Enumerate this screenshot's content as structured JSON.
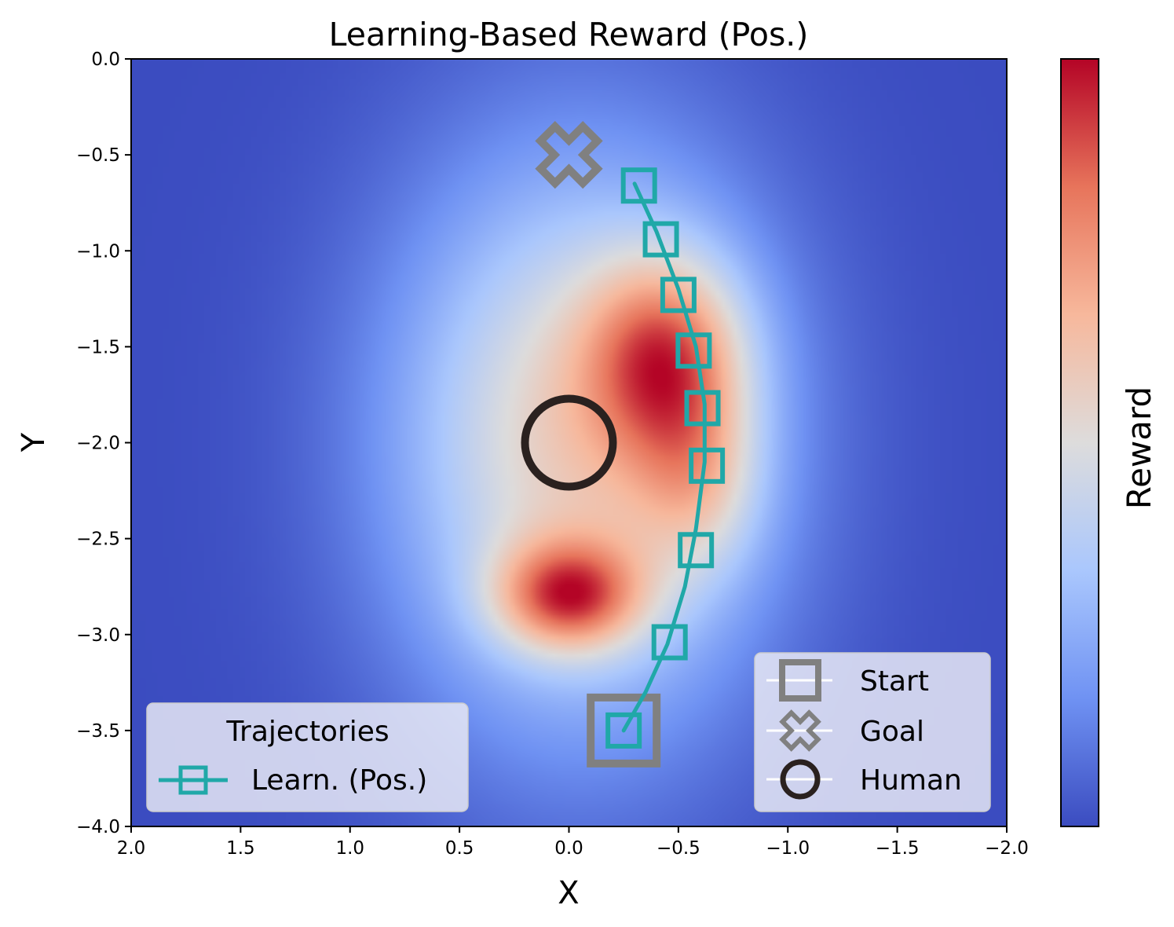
{
  "chart_data": {
    "type": "heatmap",
    "title": "Learning-Based Reward (Pos.)",
    "xlabel": "X",
    "ylabel": "Y",
    "xlim": [
      2.0,
      -2.0
    ],
    "ylim": [
      -4.0,
      0.0
    ],
    "x_ticks": [
      2.0,
      1.5,
      1.0,
      0.5,
      0.0,
      -0.5,
      -1.0,
      -1.5,
      -2.0
    ],
    "x_tick_labels": [
      "2.0",
      "1.5",
      "1.0",
      "0.5",
      "0.0",
      "−0.5",
      "−1.0",
      "−1.5",
      "−2.0"
    ],
    "y_ticks": [
      0.0,
      -0.5,
      -1.0,
      -1.5,
      -2.0,
      -2.5,
      -3.0,
      -3.5,
      -4.0
    ],
    "y_tick_labels": [
      "0.0",
      "−0.5",
      "−1.0",
      "−1.5",
      "−2.0",
      "−2.5",
      "−3.0",
      "−3.5",
      "−4.0"
    ],
    "colorbar": {
      "label": "Reward",
      "colormap": "coolwarm",
      "colors": [
        "#3b4cc0",
        "#6f92f3",
        "#aac7fd",
        "#dddcdc",
        "#f7b89c",
        "#e7745b",
        "#b40426"
      ]
    },
    "reward_field": {
      "description_units": "data",
      "components": [
        {
          "x": -0.05,
          "y": -2.0,
          "sx": 0.9,
          "sy": 1.55,
          "w": 0.55
        },
        {
          "x": -0.45,
          "y": -1.55,
          "sx": 0.38,
          "sy": 0.55,
          "w": 0.5
        },
        {
          "x": 0.0,
          "y": -2.8,
          "sx": 0.35,
          "sy": 0.3,
          "w": 0.55
        },
        {
          "x": -0.6,
          "y": -2.2,
          "sx": 0.3,
          "sy": 0.5,
          "w": 0.25
        }
      ]
    },
    "series": [
      {
        "name": "Learn. (Pos.)",
        "color": "#20a8a8",
        "marker": "square",
        "line": [
          [
            -0.25,
            -3.5
          ],
          [
            -0.35,
            -3.3
          ],
          [
            -0.45,
            -3.05
          ],
          [
            -0.53,
            -2.75
          ],
          [
            -0.58,
            -2.45
          ],
          [
            -0.62,
            -2.1
          ],
          [
            -0.62,
            -1.8
          ],
          [
            -0.58,
            -1.5
          ],
          [
            -0.5,
            -1.2
          ],
          [
            -0.4,
            -0.9
          ],
          [
            -0.3,
            -0.65
          ]
        ],
        "markers": [
          [
            -0.25,
            -3.5
          ],
          [
            -0.46,
            -3.04
          ],
          [
            -0.58,
            -2.56
          ],
          [
            -0.63,
            -2.12
          ],
          [
            -0.61,
            -1.82
          ],
          [
            -0.57,
            -1.52
          ],
          [
            -0.5,
            -1.23
          ],
          [
            -0.42,
            -0.94
          ],
          [
            -0.32,
            -0.66
          ]
        ]
      }
    ],
    "special_points": [
      {
        "name": "Start",
        "x": -0.25,
        "y": -3.5,
        "marker": "square",
        "color": "#808080"
      },
      {
        "name": "Goal",
        "x": 0.0,
        "y": -0.5,
        "marker": "X",
        "color": "#808080"
      },
      {
        "name": "Human",
        "x": 0.0,
        "y": -2.0,
        "marker": "circle",
        "color": "#2a211f"
      }
    ],
    "legends": [
      {
        "title": "Trajectories",
        "placement": "lower-left",
        "entries": [
          "Learn. (Pos.)"
        ]
      },
      {
        "title": "",
        "placement": "lower-right",
        "entries": [
          "Start",
          "Goal",
          "Human"
        ]
      }
    ]
  }
}
